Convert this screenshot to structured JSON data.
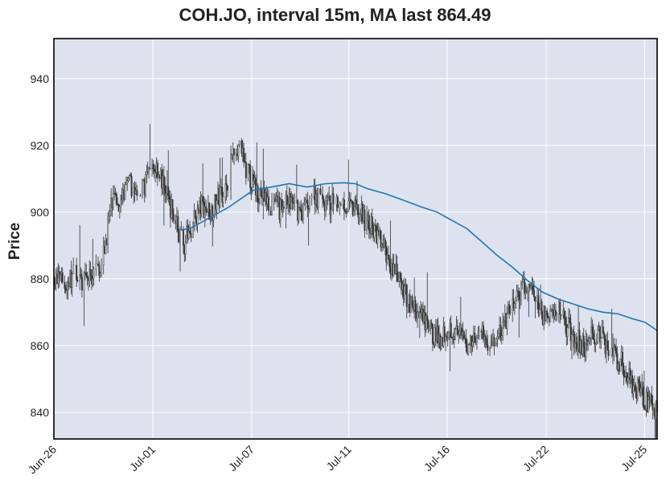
{
  "chart_data": {
    "type": "candlestick",
    "title": "COH.JO, interval 15m, MA last 864.49",
    "ylabel": "Price",
    "xlabel": "",
    "ylim": [
      832,
      952
    ],
    "yticks": [
      840,
      860,
      880,
      900,
      920,
      940
    ],
    "xtick_labels": [
      "Jun-26",
      "Jul-01",
      "Jul-07",
      "Jul-11",
      "Jul-16",
      "Jul-22",
      "Jul-25"
    ],
    "grid": true,
    "colors": {
      "background": "#dde2ee",
      "grid": "#ffffff",
      "candle": "#333333",
      "ma": "#1f77b4",
      "axes": "#000000"
    },
    "price_path": [
      {
        "t": 0.0,
        "p": 880
      },
      {
        "t": 0.02,
        "p": 878
      },
      {
        "t": 0.035,
        "p": 882
      },
      {
        "t": 0.05,
        "p": 879
      },
      {
        "t": 0.065,
        "p": 881
      },
      {
        "t": 0.08,
        "p": 885
      },
      {
        "t": 0.095,
        "p": 902
      },
      {
        "t": 0.11,
        "p": 904
      },
      {
        "t": 0.125,
        "p": 908
      },
      {
        "t": 0.14,
        "p": 905
      },
      {
        "t": 0.155,
        "p": 910
      },
      {
        "t": 0.17,
        "p": 914
      },
      {
        "t": 0.185,
        "p": 906
      },
      {
        "t": 0.2,
        "p": 898
      },
      {
        "t": 0.215,
        "p": 890
      },
      {
        "t": 0.23,
        "p": 897
      },
      {
        "t": 0.245,
        "p": 902
      },
      {
        "t": 0.26,
        "p": 900
      },
      {
        "t": 0.275,
        "p": 905
      },
      {
        "t": 0.29,
        "p": 910
      },
      {
        "t": 0.3,
        "p": 922
      },
      {
        "t": 0.315,
        "p": 915
      },
      {
        "t": 0.33,
        "p": 908
      },
      {
        "t": 0.345,
        "p": 905
      },
      {
        "t": 0.36,
        "p": 902
      },
      {
        "t": 0.375,
        "p": 901
      },
      {
        "t": 0.39,
        "p": 903
      },
      {
        "t": 0.41,
        "p": 900
      },
      {
        "t": 0.43,
        "p": 906
      },
      {
        "t": 0.445,
        "p": 903
      },
      {
        "t": 0.46,
        "p": 902
      },
      {
        "t": 0.475,
        "p": 904
      },
      {
        "t": 0.49,
        "p": 901
      },
      {
        "t": 0.505,
        "p": 900
      },
      {
        "t": 0.52,
        "p": 897
      },
      {
        "t": 0.535,
        "p": 893
      },
      {
        "t": 0.55,
        "p": 888
      },
      {
        "t": 0.565,
        "p": 882
      },
      {
        "t": 0.58,
        "p": 876
      },
      {
        "t": 0.595,
        "p": 872
      },
      {
        "t": 0.61,
        "p": 868
      },
      {
        "t": 0.625,
        "p": 864
      },
      {
        "t": 0.64,
        "p": 862
      },
      {
        "t": 0.655,
        "p": 866
      },
      {
        "t": 0.67,
        "p": 863
      },
      {
        "t": 0.685,
        "p": 860
      },
      {
        "t": 0.7,
        "p": 864
      },
      {
        "t": 0.715,
        "p": 862
      },
      {
        "t": 0.73,
        "p": 860
      },
      {
        "t": 0.745,
        "p": 866
      },
      {
        "t": 0.76,
        "p": 872
      },
      {
        "t": 0.775,
        "p": 876
      },
      {
        "t": 0.79,
        "p": 878
      },
      {
        "t": 0.805,
        "p": 870
      },
      {
        "t": 0.82,
        "p": 868
      },
      {
        "t": 0.835,
        "p": 872
      },
      {
        "t": 0.85,
        "p": 866
      },
      {
        "t": 0.865,
        "p": 862
      },
      {
        "t": 0.88,
        "p": 860
      },
      {
        "t": 0.895,
        "p": 864
      },
      {
        "t": 0.91,
        "p": 862
      },
      {
        "t": 0.925,
        "p": 858
      },
      {
        "t": 0.94,
        "p": 855
      },
      {
        "t": 0.955,
        "p": 850
      },
      {
        "t": 0.97,
        "p": 846
      },
      {
        "t": 0.985,
        "p": 843
      },
      {
        "t": 1.0,
        "p": 840
      }
    ],
    "ma_path": [
      {
        "t": 0.21,
        "p": 894.5
      },
      {
        "t": 0.23,
        "p": 895.5
      },
      {
        "t": 0.25,
        "p": 897.5
      },
      {
        "t": 0.27,
        "p": 899.5
      },
      {
        "t": 0.29,
        "p": 901.5
      },
      {
        "t": 0.31,
        "p": 904
      },
      {
        "t": 0.33,
        "p": 906.5
      },
      {
        "t": 0.36,
        "p": 907.5
      },
      {
        "t": 0.39,
        "p": 908.5
      },
      {
        "t": 0.42,
        "p": 907.5
      },
      {
        "t": 0.45,
        "p": 908.5
      },
      {
        "t": 0.48,
        "p": 908.8
      },
      {
        "t": 0.5,
        "p": 908.5
      },
      {
        "t": 0.52,
        "p": 907
      },
      {
        "t": 0.55,
        "p": 905.5
      },
      {
        "t": 0.58,
        "p": 903.5
      },
      {
        "t": 0.61,
        "p": 901.5
      },
      {
        "t": 0.635,
        "p": 900
      },
      {
        "t": 0.66,
        "p": 897.5
      },
      {
        "t": 0.685,
        "p": 895
      },
      {
        "t": 0.71,
        "p": 891
      },
      {
        "t": 0.735,
        "p": 887
      },
      {
        "t": 0.76,
        "p": 883.5
      },
      {
        "t": 0.785,
        "p": 879.5
      },
      {
        "t": 0.81,
        "p": 876
      },
      {
        "t": 0.835,
        "p": 874
      },
      {
        "t": 0.86,
        "p": 872.5
      },
      {
        "t": 0.885,
        "p": 871
      },
      {
        "t": 0.91,
        "p": 870
      },
      {
        "t": 0.935,
        "p": 869.5
      },
      {
        "t": 0.96,
        "p": 868
      },
      {
        "t": 0.98,
        "p": 867
      },
      {
        "t": 1.0,
        "p": 864.5
      }
    ]
  }
}
